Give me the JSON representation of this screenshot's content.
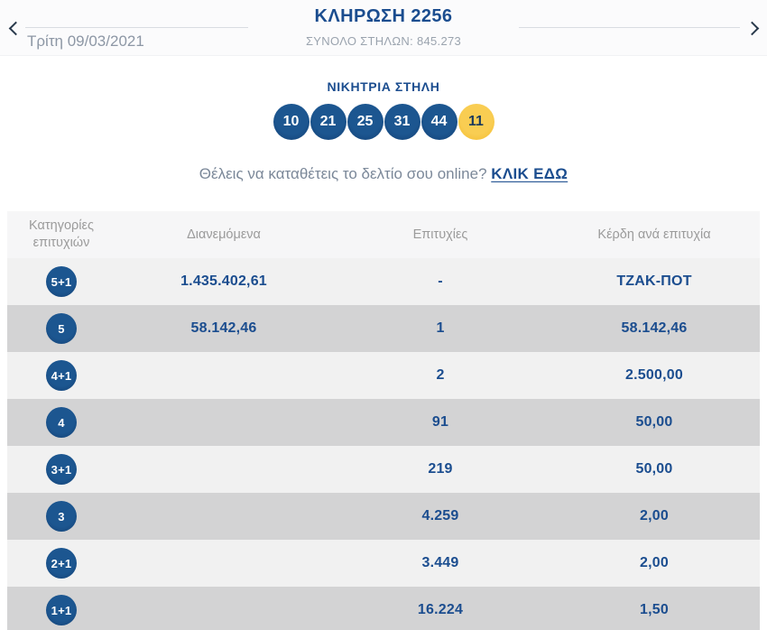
{
  "nav": {
    "date": "Τρίτη 09/03/2021",
    "title": "ΚΛΗΡΩΣΗ 2256",
    "subtitle": "ΣΥΝΟΛΟ ΣΤΗΛΩΝ: 845.273"
  },
  "winning": {
    "label": "ΝΙΚΗΤΡΙΑ ΣΤΗΛΗ",
    "numbers": [
      "10",
      "21",
      "25",
      "31",
      "44"
    ],
    "joker": "11"
  },
  "online": {
    "text": "Θέλεις να καταθέτεις το δελτίο σου online?",
    "link": "ΚΛΙΚ ΕΔΩ"
  },
  "table": {
    "headers": [
      "Κατηγορίες επιτυχιών",
      "Διανεμόμενα",
      "Επιτυχίες",
      "Κέρδη ανά επιτυχία"
    ],
    "rows": [
      {
        "category": "5+1",
        "distributed": "1.435.402,61",
        "wins": "-",
        "per_win": "ΤΖΑΚ-ΠΟΤ"
      },
      {
        "category": "5",
        "distributed": "58.142,46",
        "wins": "1",
        "per_win": "58.142,46"
      },
      {
        "category": "4+1",
        "distributed": "",
        "wins": "2",
        "per_win": "2.500,00"
      },
      {
        "category": "4",
        "distributed": "",
        "wins": "91",
        "per_win": "50,00"
      },
      {
        "category": "3+1",
        "distributed": "",
        "wins": "219",
        "per_win": "50,00"
      },
      {
        "category": "3",
        "distributed": "",
        "wins": "4.259",
        "per_win": "2,00"
      },
      {
        "category": "2+1",
        "distributed": "",
        "wins": "3.449",
        "per_win": "2,00"
      },
      {
        "category": "1+1",
        "distributed": "",
        "wins": "16.224",
        "per_win": "1,50"
      }
    ]
  },
  "colors": {
    "accent_navy": "#1b4d8f",
    "ball_blue": "#164a7f",
    "joker_yellow": "#f6c443",
    "row_light": "#f1f1f1",
    "row_dark": "#d3d3d4",
    "header_gray_text": "#9b9b9b"
  }
}
